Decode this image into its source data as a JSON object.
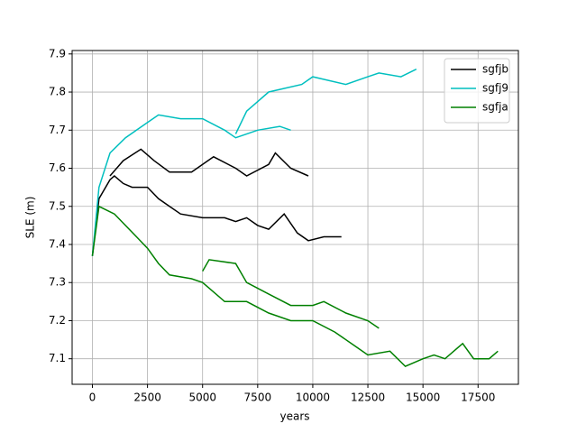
{
  "chart_data": {
    "type": "line",
    "x_label": "years",
    "y_label": "SLE (m)",
    "xlim": [
      -920,
      19330
    ],
    "ylim": [
      7.033,
      7.909
    ],
    "xticks": [
      0,
      2500,
      5000,
      7500,
      10000,
      12500,
      15000,
      17500
    ],
    "yticks": [
      7.1,
      7.2,
      7.3,
      7.4,
      7.5,
      7.6,
      7.7,
      7.8,
      7.9
    ],
    "grid": true,
    "legend": "upper right",
    "series": [
      {
        "name": "sgfjb",
        "color": "#000000",
        "lines": [
          {
            "x": [
              0,
              300,
              800,
              1000,
              1400,
              1800,
              2500,
              3000,
              3500,
              4000,
              5000,
              6000,
              6500,
              7000,
              7500,
              8000,
              8700,
              9300,
              9800,
              10500,
              11300
            ],
            "values": [
              7.37,
              7.52,
              7.57,
              7.58,
              7.56,
              7.55,
              7.55,
              7.52,
              7.5,
              7.48,
              7.47,
              7.47,
              7.46,
              7.47,
              7.45,
              7.44,
              7.48,
              7.43,
              7.41,
              7.42,
              7.42
            ]
          },
          {
            "x": [
              800,
              1400,
              2200,
              2800,
              3500,
              4500,
              5500,
              6500,
              7000,
              8000,
              8300,
              9000,
              9800
            ],
            "values": [
              7.58,
              7.62,
              7.65,
              7.62,
              7.59,
              7.59,
              7.63,
              7.6,
              7.58,
              7.61,
              7.64,
              7.6,
              7.58
            ]
          }
        ]
      },
      {
        "name": "sgfj9",
        "color": "#00bfbf",
        "lines": [
          {
            "x": [
              0,
              300,
              800,
              1500,
              2500,
              3000,
              4000,
              5000,
              6000,
              6500,
              7500,
              8500,
              9000
            ],
            "values": [
              7.37,
              7.55,
              7.64,
              7.68,
              7.72,
              7.74,
              7.73,
              7.73,
              7.7,
              7.68,
              7.7,
              7.71,
              7.7
            ]
          },
          {
            "x": [
              6500,
              7000,
              8000,
              9500,
              10000,
              11500,
              12500,
              13000,
              14000,
              14700
            ],
            "values": [
              7.69,
              7.75,
              7.8,
              7.82,
              7.84,
              7.82,
              7.84,
              7.85,
              7.84,
              7.86
            ]
          }
        ]
      },
      {
        "name": "sgfja",
        "color": "#008000",
        "lines": [
          {
            "x": [
              0,
              300,
              1000,
              2000,
              2500,
              3000,
              3500,
              4500,
              5000,
              6000,
              7000,
              8000,
              9000,
              10000,
              11000,
              12000,
              12500,
              13500,
              14200,
              15000,
              15500,
              16000,
              16800,
              17300,
              18000,
              18400
            ],
            "values": [
              7.37,
              7.5,
              7.48,
              7.42,
              7.39,
              7.35,
              7.32,
              7.31,
              7.3,
              7.25,
              7.25,
              7.22,
              7.2,
              7.2,
              7.17,
              7.13,
              7.11,
              7.12,
              7.08,
              7.1,
              7.11,
              7.1,
              7.14,
              7.1,
              7.1,
              7.12
            ]
          },
          {
            "x": [
              5000,
              5300,
              6500,
              7000,
              8000,
              9000,
              10000,
              10500,
              11500,
              12500,
              13000
            ],
            "values": [
              7.33,
              7.36,
              7.35,
              7.3,
              7.27,
              7.24,
              7.24,
              7.25,
              7.22,
              7.2,
              7.18
            ]
          }
        ]
      }
    ]
  }
}
